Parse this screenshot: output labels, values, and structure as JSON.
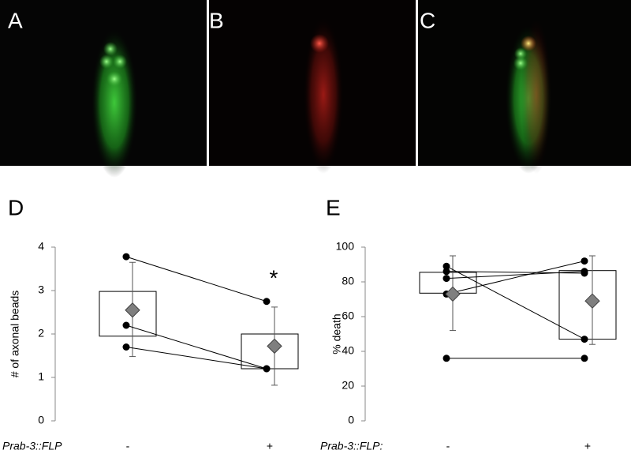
{
  "images": [
    {
      "label": "A"
    },
    {
      "label": "B"
    },
    {
      "label": "C"
    }
  ],
  "chart_data": [
    {
      "type": "box",
      "panel": "D",
      "ylabel": "# of axonal beads",
      "xlabel": "Prab-3::FLP",
      "categories": [
        "-",
        "+"
      ],
      "boxes": [
        {
          "q1": 1.95,
          "q3": 2.98,
          "mean": 2.55,
          "err_low": 1.48,
          "err_high": 3.65
        },
        {
          "q1": 1.2,
          "q3": 2.0,
          "mean": 1.72,
          "err_low": 0.82,
          "err_high": 2.62
        }
      ],
      "points": [
        [
          3.78,
          2.75
        ],
        [
          2.2,
          1.2
        ],
        [
          1.7,
          1.2
        ]
      ],
      "annotation": "*",
      "ylim": [
        0,
        4
      ],
      "yticks": [
        0,
        1,
        2,
        3,
        4
      ]
    },
    {
      "type": "box",
      "panel": "E",
      "ylabel": "% death",
      "xlabel": "Prab-3::FLP:",
      "categories": [
        "-",
        "+"
      ],
      "boxes": [
        {
          "q1": 73.5,
          "q3": 85.5,
          "mean": 73,
          "err_low": 52,
          "err_high": 95
        },
        {
          "q1": 47,
          "q3": 86.5,
          "mean": 69,
          "err_low": 44,
          "err_high": 95
        }
      ],
      "points": [
        [
          89,
          47
        ],
        [
          86,
          85
        ],
        [
          82,
          86
        ],
        [
          73,
          92
        ],
        [
          36,
          36
        ]
      ],
      "ylim": [
        0,
        100
      ],
      "yticks": [
        0,
        20,
        40,
        60,
        80,
        100
      ]
    }
  ]
}
